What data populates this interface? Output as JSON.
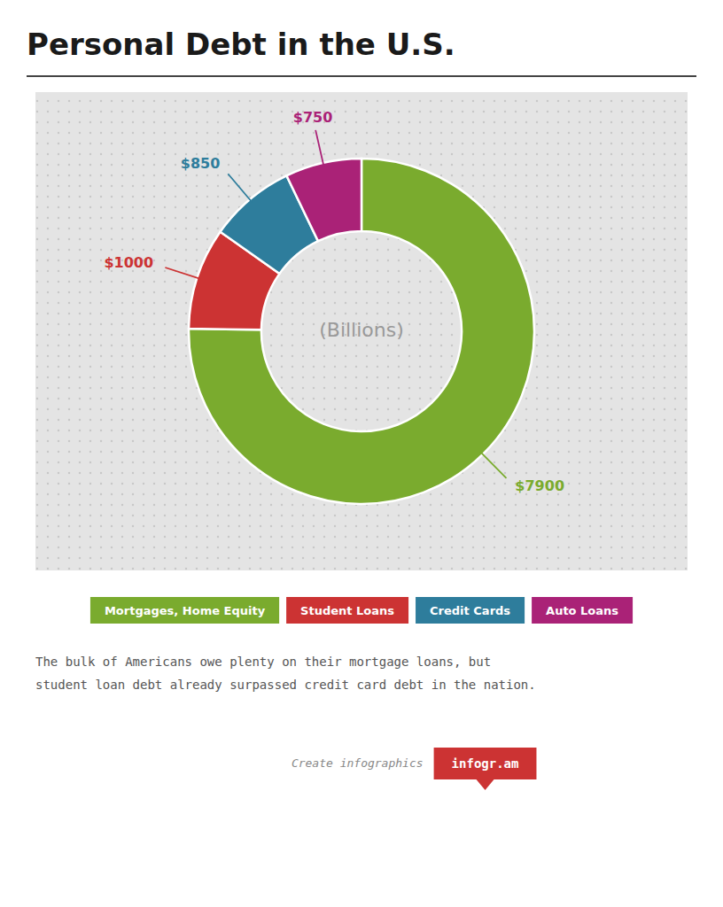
{
  "chart_data": {
    "type": "pie",
    "title": "Personal Debt in the U.S.",
    "categories": [
      "Mortgages, Home Equity",
      "Student Loans",
      "Credit Cards",
      "Auto Loans"
    ],
    "values": [
      7900,
      1000,
      850,
      750
    ],
    "value_labels": [
      "$7900",
      "$1000",
      "$850",
      "$750"
    ],
    "data_labels": true,
    "colors": [
      "#7aab2e",
      "#cc3333",
      "#2e7d9c",
      "#aa2277"
    ],
    "legend": "bottom",
    "center_text": "(Billions)",
    "annotations": [
      "The bulk of Americans owe plenty on their mortgage loans, but",
      "student loan debt already surpassed credit card debt in the nation.",
      "Create infographics",
      "infogr.am"
    ]
  }
}
